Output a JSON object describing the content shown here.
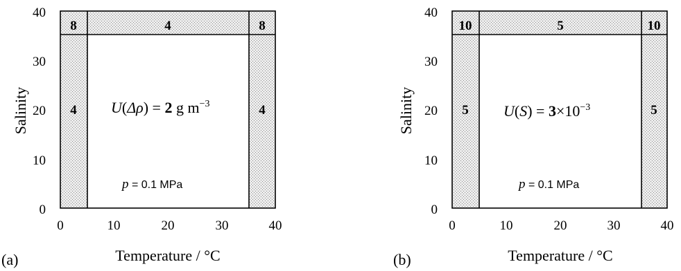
{
  "colors": {
    "shade": "#e2e2e2",
    "line": "#000000",
    "background": "#ffffff"
  },
  "panels": [
    {
      "label": "(a)",
      "xlabel": "Temperature / °C",
      "ylabel": "Salinity",
      "xticks": [
        "0",
        "10",
        "20",
        "30",
        "40"
      ],
      "yticks": [
        "0",
        "10",
        "20",
        "30",
        "40"
      ],
      "region_values": {
        "top_left": "8",
        "top_mid": "4",
        "top_right": "8",
        "left": "4",
        "right": "4"
      },
      "equation": {
        "pre": "U",
        "open": "(",
        "arg": "Δρ",
        "close": ")",
        "eq": " = ",
        "value": "2",
        "unit": " g m",
        "exp": "−3"
      },
      "pressure": {
        "sym": "p",
        "text": " = 0.1 MPa"
      }
    },
    {
      "label": "(b)",
      "xlabel": "Temperature / °C",
      "ylabel": "Salinity",
      "xticks": [
        "0",
        "10",
        "20",
        "30",
        "40"
      ],
      "yticks": [
        "0",
        "10",
        "20",
        "30",
        "40"
      ],
      "region_values": {
        "top_left": "10",
        "top_mid": "5",
        "top_right": "10",
        "left": "5",
        "right": "5"
      },
      "equation": {
        "pre": "U",
        "open": "(",
        "arg": "S",
        "close": ")",
        "eq": " = ",
        "value": "3",
        "unit": "×10",
        "exp": "−3"
      },
      "pressure": {
        "sym": "p",
        "text": " = 0.1 MPa"
      }
    }
  ],
  "chart_data": [
    {
      "type": "diagram",
      "xlim": [
        0,
        40
      ],
      "ylim": [
        0,
        40
      ],
      "xlabel": "Temperature / °C",
      "ylabel": "Salinity",
      "boundaries": {
        "t_low": 5,
        "t_high": 35,
        "s_high": 35
      },
      "regions": [
        {
          "name": "top-left",
          "T": [
            0,
            5
          ],
          "S": [
            35,
            40
          ],
          "value": 8
        },
        {
          "name": "top-middle",
          "T": [
            5,
            35
          ],
          "S": [
            35,
            40
          ],
          "value": 4
        },
        {
          "name": "top-right",
          "T": [
            35,
            40
          ],
          "S": [
            35,
            40
          ],
          "value": 8
        },
        {
          "name": "left",
          "T": [
            0,
            5
          ],
          "S": [
            0,
            35
          ],
          "value": 4
        },
        {
          "name": "center",
          "T": [
            5,
            35
          ],
          "S": [
            0,
            35
          ],
          "value": 2
        },
        {
          "name": "right",
          "T": [
            35,
            40
          ],
          "S": [
            0,
            35
          ],
          "value": 4
        }
      ]
    },
    {
      "type": "diagram",
      "xlim": [
        0,
        40
      ],
      "ylim": [
        0,
        40
      ],
      "xlabel": "Temperature / °C",
      "ylabel": "Salinity",
      "boundaries": {
        "t_low": 5,
        "t_high": 35,
        "s_high": 35
      },
      "regions": [
        {
          "name": "top-left",
          "T": [
            0,
            5
          ],
          "S": [
            35,
            40
          ],
          "value": 10
        },
        {
          "name": "top-middle",
          "T": [
            5,
            35
          ],
          "S": [
            35,
            40
          ],
          "value": 5
        },
        {
          "name": "top-right",
          "T": [
            35,
            40
          ],
          "S": [
            35,
            40
          ],
          "value": 10
        },
        {
          "name": "left",
          "T": [
            0,
            5
          ],
          "S": [
            0,
            35
          ],
          "value": 5
        },
        {
          "name": "center",
          "T": [
            5,
            35
          ],
          "S": [
            0,
            35
          ],
          "value": 3
        },
        {
          "name": "right",
          "T": [
            35,
            40
          ],
          "S": [
            0,
            35
          ],
          "value": 5
        }
      ]
    }
  ]
}
